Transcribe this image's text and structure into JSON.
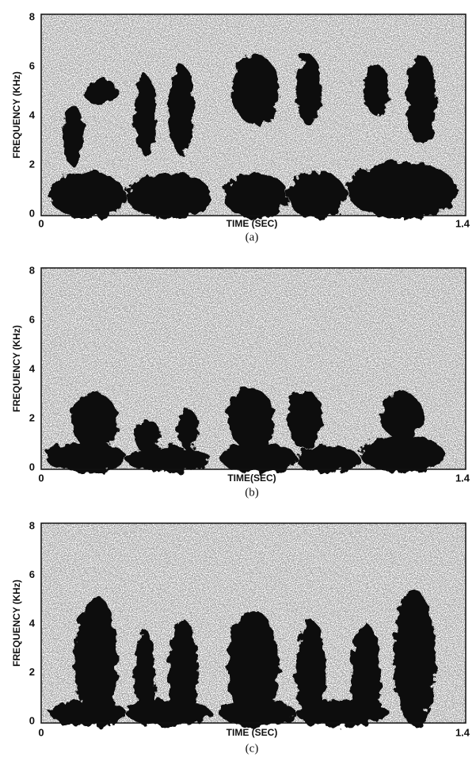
{
  "panels": [
    {
      "y_label": "FREQUENCY (KHz)",
      "y_ticks": [
        "0",
        "2",
        "4",
        "6",
        "8"
      ],
      "x_ticks": [
        "0",
        "1.4"
      ],
      "x_label": "TIME (SEC)",
      "caption": "(a)"
    },
    {
      "y_label": "FREQUENCY (KHz)",
      "y_ticks": [
        "0",
        "2",
        "4",
        "6",
        "8"
      ],
      "x_ticks": [
        "0",
        "1.4"
      ],
      "x_label": "TIME(SEC)",
      "caption": "(b)"
    },
    {
      "y_label": "FREQUENCY (KHz)",
      "y_ticks": [
        "0",
        "2",
        "4",
        "6",
        "8"
      ],
      "x_ticks": [
        "0",
        "1.4"
      ],
      "x_label": "TIME (SEC)",
      "caption": "(c)"
    }
  ]
}
